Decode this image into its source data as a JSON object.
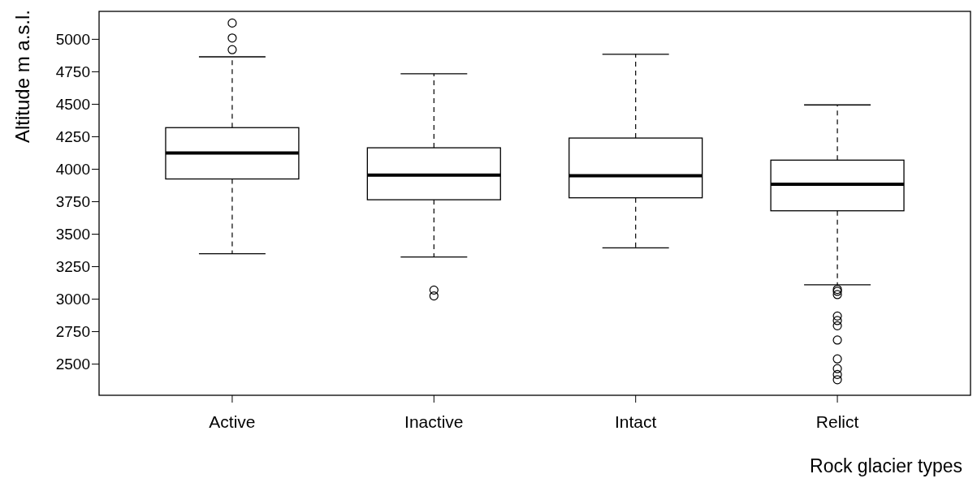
{
  "chart_data": {
    "type": "box",
    "xlabel": "Rock glacier types",
    "ylabel": "Altitude m a.s.l.",
    "categories": [
      "Active",
      "Inactive",
      "Intact",
      "Relict"
    ],
    "color": "#000000",
    "boxes": [
      {
        "low": 3350,
        "q1": 3925,
        "median": 4125,
        "q3": 4320,
        "high": 4865,
        "outliers": [
          4920,
          5010,
          5125
        ]
      },
      {
        "low": 3325,
        "q1": 3765,
        "median": 3955,
        "q3": 4165,
        "high": 4735,
        "outliers": [
          3070,
          3025
        ]
      },
      {
        "low": 3395,
        "q1": 3780,
        "median": 3950,
        "q3": 4240,
        "high": 4885
      },
      {
        "low": 3110,
        "q1": 3680,
        "median": 3885,
        "q3": 4070,
        "high": 4495,
        "outliers": [
          3075,
          3060,
          3035,
          2870,
          2835,
          2795,
          2685,
          2540,
          2465,
          2420,
          2380
        ]
      }
    ],
    "ylim": [
      2260,
      5215
    ],
    "yticks": [
      2500,
      2750,
      3000,
      3250,
      3500,
      3750,
      4000,
      4250,
      4500,
      4750,
      5000
    ]
  }
}
